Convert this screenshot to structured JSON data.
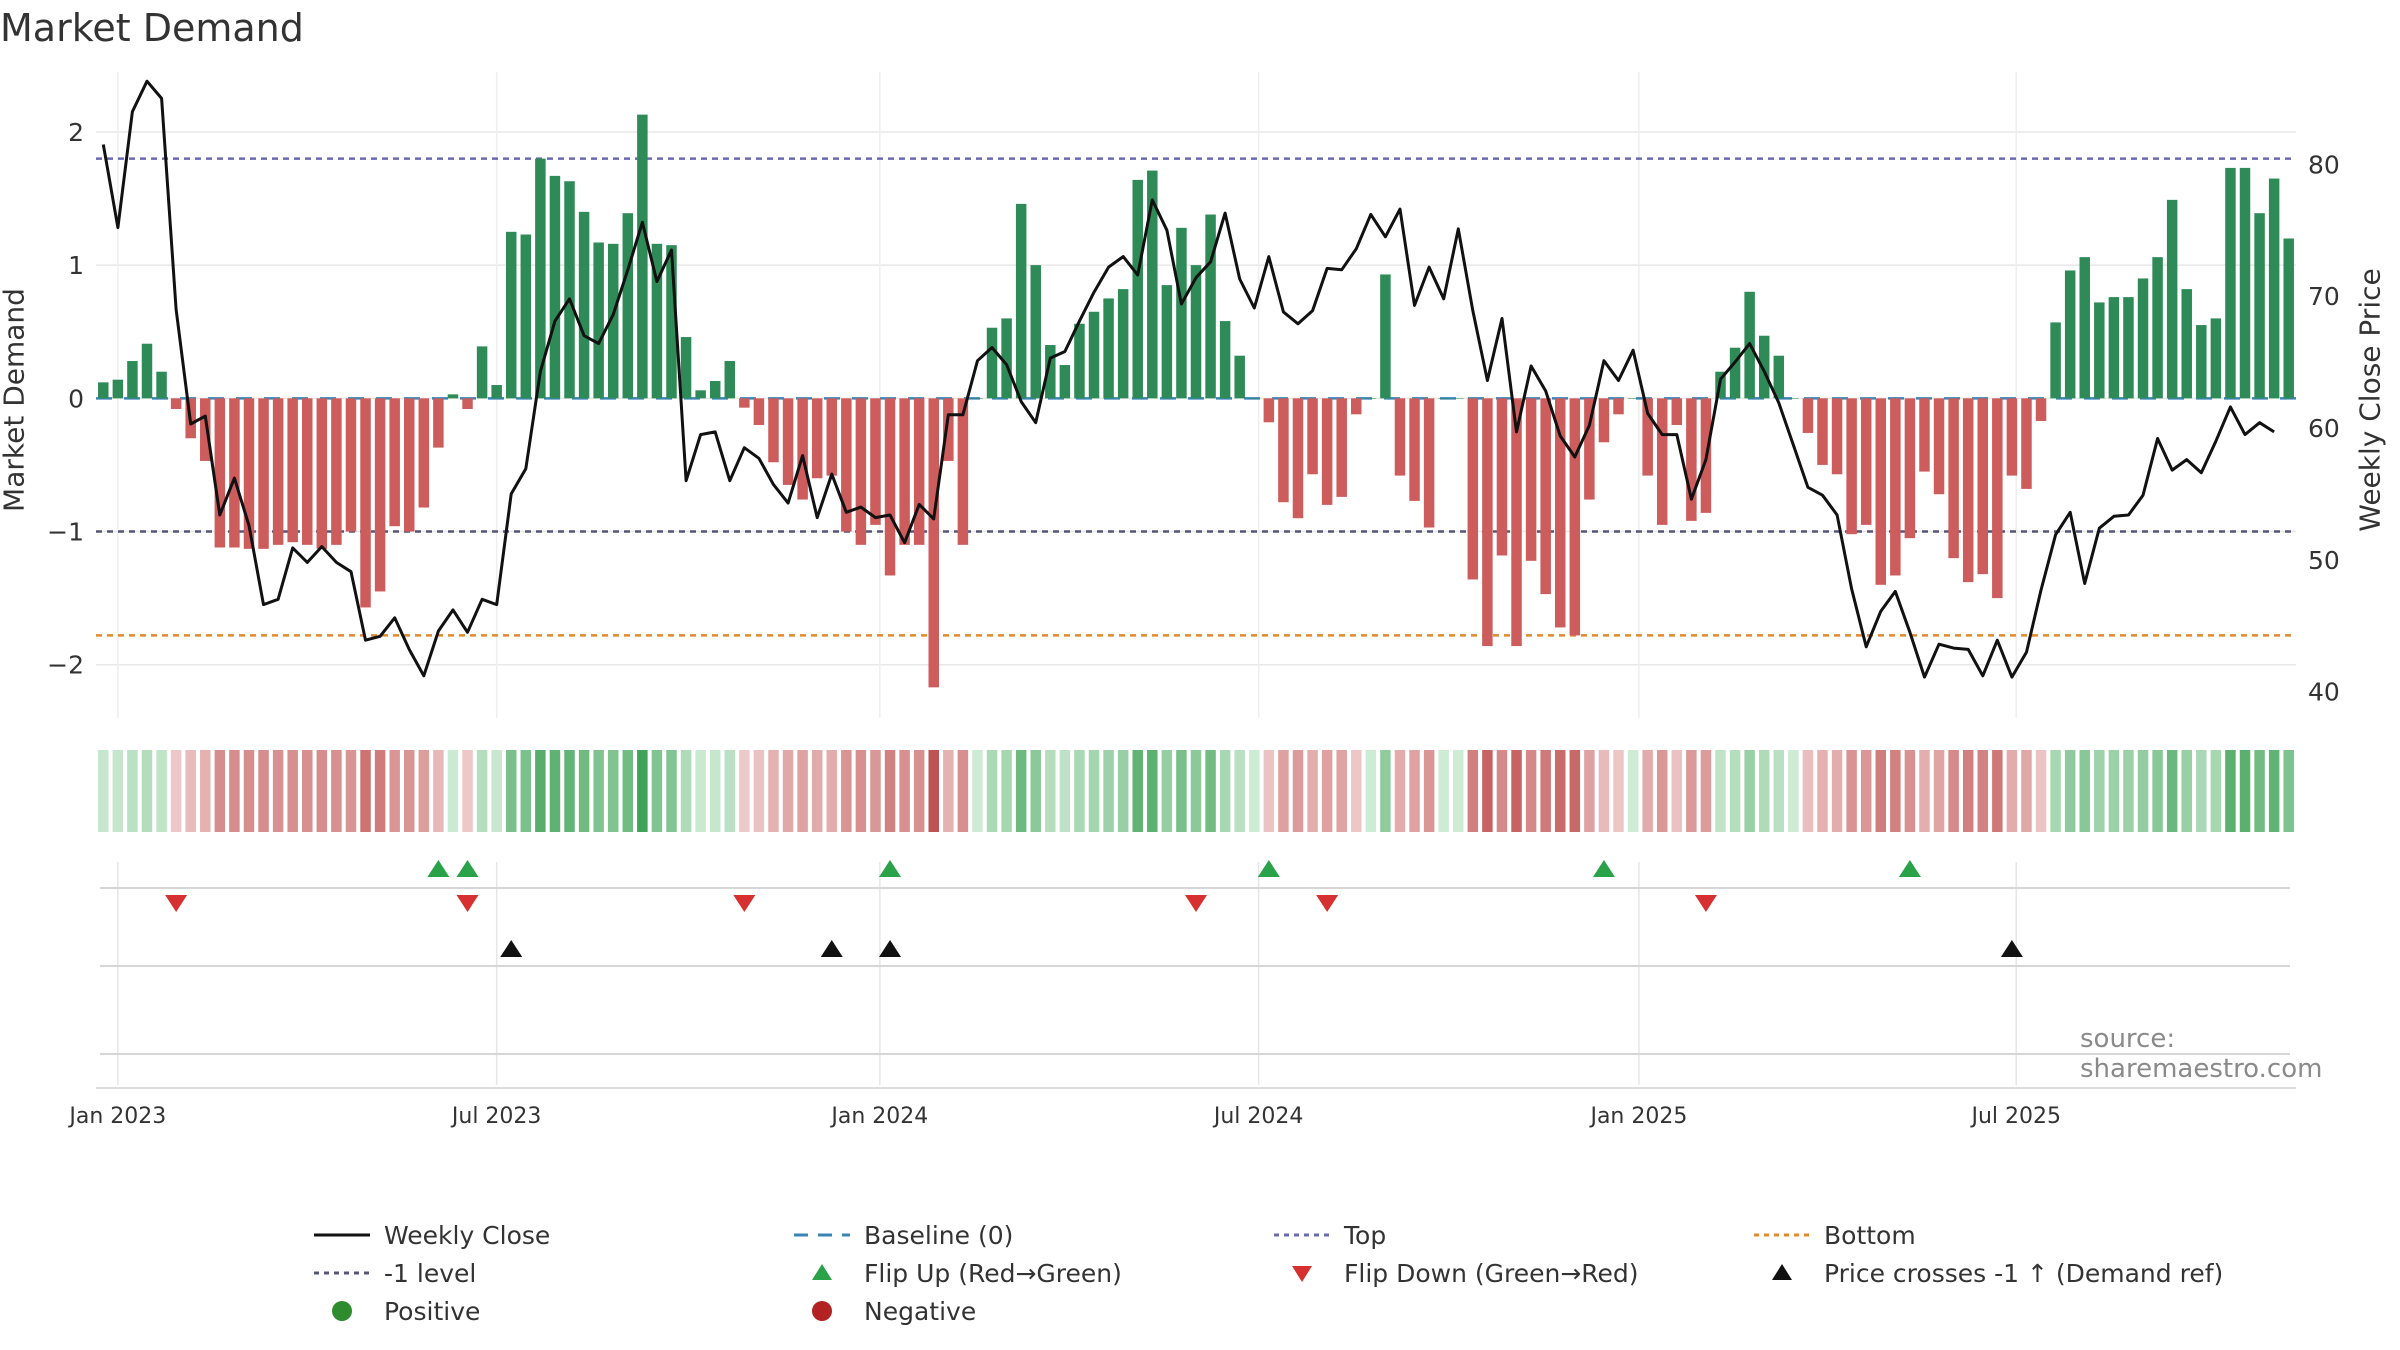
{
  "title": "Market Demand",
  "source": "source: sharemaestro.com",
  "colors": {
    "positive": "#2e8b57",
    "negative": "#cd5c5c",
    "close": "#111111",
    "top": "#6a6ab0",
    "bottom": "#e08a2e",
    "baseline": "#3a85b5",
    "neg1": "#555577",
    "flip_up": "#2aa24a",
    "flip_down": "#d63030",
    "cross": "#111111",
    "pos_dot": "#2e8b2e",
    "neg_dot": "#b22222"
  },
  "chart_data": {
    "type": "bar",
    "title": "Market Demand",
    "ylabel_left": "Market Demand",
    "ylabel_right": "Weekly Close Price",
    "ylim_left": [
      -2.4,
      2.45
    ],
    "ylim_right": [
      38,
      87
    ],
    "yticks_left": [
      2,
      1,
      0,
      -1,
      -2
    ],
    "ytick_labels_left": [
      "2",
      "1",
      "0",
      "−1",
      "−2"
    ],
    "yticks_right": [
      80,
      70,
      60,
      50,
      40
    ],
    "ytick_labels_right": [
      "80",
      "70",
      "60",
      "50",
      "40"
    ],
    "x_start": "2022-12-26",
    "x_ticks": [
      {
        "label": "Jan 2023",
        "week": 1
      },
      {
        "label": "Jul 2023",
        "week": 27
      },
      {
        "label": "Jan 2024",
        "week": 53.3
      },
      {
        "label": "Jul 2024",
        "week": 79.3
      },
      {
        "label": "Jan 2025",
        "week": 105.4
      },
      {
        "label": "Jul 2025",
        "week": 131.3
      }
    ],
    "reference_lines": {
      "top": 1.8,
      "neg1": -1,
      "bottom": -1.78,
      "baseline": 0
    },
    "demand": [
      0.12,
      0.14,
      0.28,
      0.41,
      0.2,
      -0.08,
      -0.3,
      -0.47,
      -1.12,
      -1.12,
      -1.13,
      -1.13,
      -1.1,
      -1.08,
      -1.1,
      -1.13,
      -1.1,
      -1.0,
      -1.57,
      -1.45,
      -0.96,
      -1.0,
      -0.82,
      -0.37,
      0.03,
      -0.08,
      0.39,
      0.1,
      1.25,
      1.23,
      1.8,
      1.67,
      1.63,
      1.4,
      1.17,
      1.16,
      1.39,
      2.13,
      1.16,
      1.15,
      0.46,
      0.06,
      0.13,
      0.28,
      -0.07,
      -0.2,
      -0.48,
      -0.65,
      -0.76,
      -0.6,
      -0.58,
      -1.0,
      -1.1,
      -0.95,
      -1.33,
      -1.1,
      -1.1,
      -2.17,
      -0.47,
      -1.1,
      0,
      0.53,
      0.6,
      1.46,
      1.0,
      0.4,
      0.25,
      0.56,
      0.65,
      0.75,
      0.82,
      1.64,
      1.71,
      0.85,
      1.28,
      1.0,
      1.38,
      0.58,
      0.32,
      0,
      -0.18,
      -0.78,
      -0.9,
      -0.57,
      -0.8,
      -0.74,
      -0.12,
      0,
      0.93,
      -0.58,
      -0.77,
      -0.97,
      0,
      0,
      -1.36,
      -1.86,
      -1.18,
      -1.86,
      -1.22,
      -1.47,
      -1.72,
      -1.78,
      -0.76,
      -0.33,
      -0.12,
      0,
      -0.58,
      -0.95,
      -0.2,
      -0.92,
      -0.86,
      0.2,
      0.38,
      0.8,
      0.47,
      0.32,
      0,
      -0.26,
      -0.5,
      -0.57,
      -1.02,
      -0.95,
      -1.4,
      -1.33,
      -1.05,
      -0.55,
      -0.72,
      -1.2,
      -1.38,
      -1.32,
      -1.5,
      -0.58,
      -0.68,
      -0.17,
      0.57,
      0.96,
      1.06,
      0.72,
      0.76,
      0.76,
      0.9,
      1.06,
      1.49,
      0.82,
      0.55,
      0.6,
      1.73,
      1.73,
      1.39,
      1.65,
      1.2
    ],
    "close": [
      81.5,
      75.2,
      84,
      86.3,
      85,
      69,
      60.3,
      60.9,
      53.4,
      56.2,
      52.6,
      46.6,
      47,
      50.9,
      49.8,
      51,
      49.8,
      49.1,
      43.9,
      44.2,
      45.6,
      43.2,
      41.2,
      44.6,
      46.2,
      44.5,
      47,
      46.6,
      55,
      56.9,
      64.3,
      68.1,
      69.8,
      67,
      66.4,
      68.6,
      72,
      75.6,
      71.1,
      73.5,
      56,
      59.5,
      59.7,
      56,
      58.5,
      57.7,
      55.7,
      54.3,
      57.9,
      53.2,
      56.5,
      53.6,
      54,
      53.2,
      53.4,
      51.3,
      54.2,
      53.1,
      61,
      61,
      65.1,
      66.1,
      64.8,
      62,
      60.4,
      65.3,
      65.8,
      68.1,
      70.3,
      72.2,
      73,
      71.6,
      77.3,
      75,
      69.4,
      71.4,
      72.6,
      76.3,
      71.3,
      69.1,
      73,
      68.8,
      67.9,
      68.9,
      72.1,
      72,
      73.6,
      76.2,
      74.5,
      76.6,
      69.3,
      72.2,
      69.8,
      75.1,
      68.9,
      63.6,
      68.3,
      59.7,
      64.7,
      62.8,
      59.4,
      57.8,
      60.2,
      65.1,
      63.6,
      65.9,
      61.1,
      59.5,
      59.5,
      54.6,
      57.6,
      63.7,
      65,
      66.4,
      64.3,
      61.9,
      58.7,
      55.5,
      54.9,
      53.4,
      47.8,
      43.4,
      46.1,
      47.6,
      44.5,
      41.1,
      43.6,
      43.3,
      43.2,
      41.2,
      43.9,
      41.1,
      43,
      47.7,
      51.9,
      53.6,
      48.2,
      52.4,
      53.3,
      53.4,
      54.9,
      59.2,
      56.8,
      57.6,
      56.6,
      59,
      61.6,
      59.5,
      60.4,
      59.7
    ],
    "flip_up_weeks": [
      23,
      25,
      54,
      80,
      103,
      124
    ],
    "flip_down_weeks": [
      5,
      25,
      44,
      75,
      84,
      110
    ],
    "cross_up_weeks": [
      28,
      50,
      54,
      131
    ]
  },
  "legend": {
    "weekly_close": "Weekly Close",
    "baseline": "Baseline (0)",
    "top": "Top",
    "bottom": "Bottom",
    "neg1": "-1 level",
    "flip_up": "Flip Up (Red→Green)",
    "flip_down": "Flip Down (Green→Red)",
    "cross": "Price crosses -1 ↑ (Demand ref)",
    "positive": "Positive",
    "negative": "Negative"
  }
}
